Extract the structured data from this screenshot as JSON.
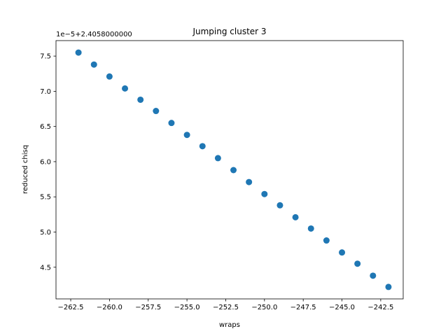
{
  "chart_data": {
    "type": "scatter",
    "title": "Jumping cluster 3",
    "xlabel": "wraps",
    "ylabel": "reduced chisq",
    "offset_label": "1e−5+2.4058000000",
    "xlim": [
      -263.45,
      -241.05
    ],
    "ylim": [
      4.05,
      7.72
    ],
    "x_ticks": [
      -262.5,
      -260.0,
      -257.5,
      -255.0,
      -252.5,
      -250.0,
      -247.5,
      -245.0,
      -242.5
    ],
    "x_tick_labels": [
      "−262.5",
      "−260.0",
      "−257.5",
      "−255.0",
      "−252.5",
      "−250.0",
      "−247.5",
      "−245.0",
      "−242.5"
    ],
    "y_ticks": [
      4.5,
      5.0,
      5.5,
      6.0,
      6.5,
      7.0,
      7.5
    ],
    "y_tick_labels": [
      "4.5",
      "5.0",
      "5.5",
      "6.0",
      "6.5",
      "7.0",
      "7.5"
    ],
    "marker_color": "#1f77b4",
    "grid": false,
    "x": [
      -262,
      -261,
      -260,
      -259,
      -258,
      -257,
      -256,
      -255,
      -254,
      -253,
      -252,
      -251,
      -250,
      -249,
      -248,
      -247,
      -246,
      -245,
      -244,
      -243,
      -242
    ],
    "y": [
      7.55,
      7.38,
      7.21,
      7.04,
      6.88,
      6.72,
      6.55,
      6.38,
      6.22,
      6.05,
      5.88,
      5.71,
      5.54,
      5.38,
      5.21,
      5.05,
      4.88,
      4.71,
      4.55,
      4.38,
      4.22
    ]
  }
}
